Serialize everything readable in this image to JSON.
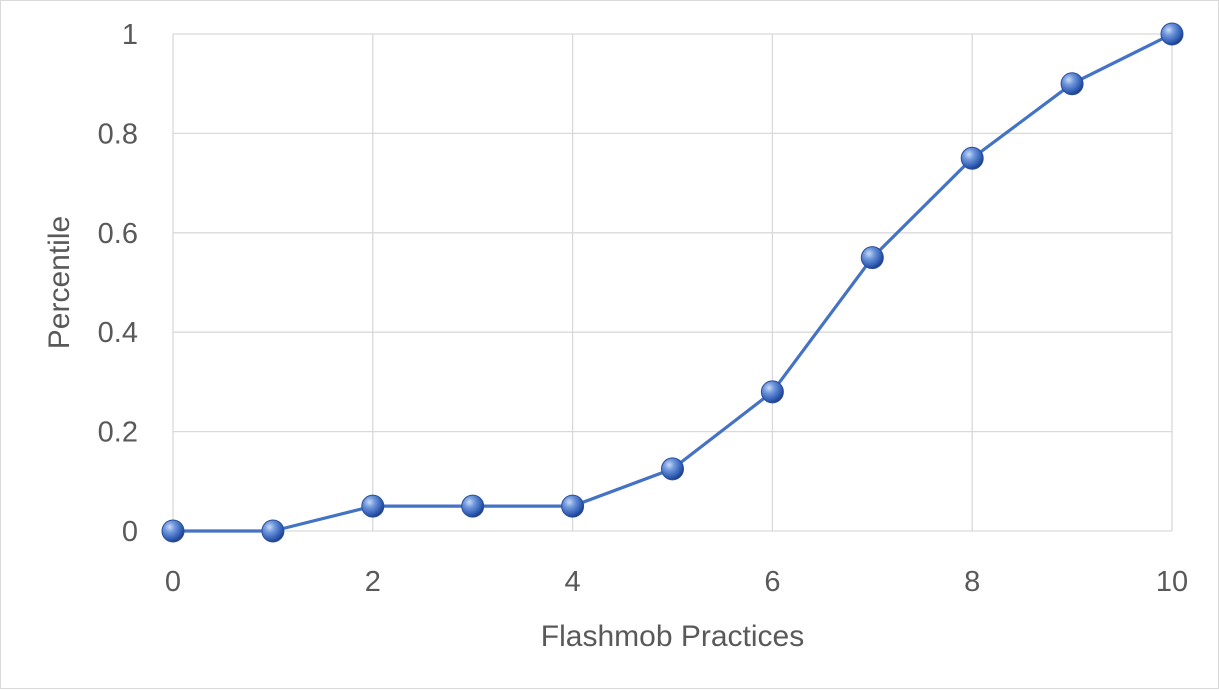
{
  "chart_data": {
    "type": "scatter",
    "title": "",
    "xlabel": "Flashmob Practices",
    "ylabel": "Percentile",
    "xlim": [
      0,
      10
    ],
    "ylim": [
      0,
      1
    ],
    "x_ticks": [
      "0",
      "2",
      "4",
      "6",
      "8",
      "10"
    ],
    "y_ticks": [
      "0",
      "0.2",
      "0.4",
      "0.6",
      "0.8",
      "1"
    ],
    "grid": true,
    "legend": "none",
    "series": [
      {
        "x": [
          0,
          1,
          2,
          3,
          4,
          5,
          6,
          7,
          8,
          9,
          10
        ],
        "y": [
          0,
          0,
          0.05,
          0.05,
          0.05,
          0.125,
          0.28,
          0.55,
          0.75,
          0.9,
          1.0
        ],
        "color": "#4472c4",
        "line": true,
        "marker": "sphere"
      }
    ]
  }
}
